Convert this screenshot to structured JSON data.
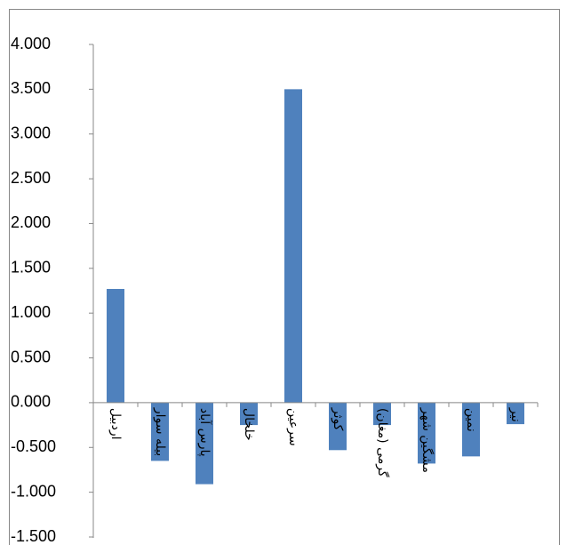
{
  "chart_data": {
    "type": "bar",
    "categories": [
      "اردبیل",
      "بیله سوار",
      "پارس آباد",
      "خلخال",
      "سرعین",
      "کوثر",
      "گرمی (مغان)",
      "مشگین شهر",
      "نمین",
      "نیر"
    ],
    "values": [
      1.27,
      -0.65,
      -0.91,
      -0.25,
      3.5,
      -0.53,
      -0.25,
      -0.68,
      -0.6,
      -0.24
    ],
    "color": "#4f81bd",
    "ylim": [
      -1.5,
      4
    ],
    "yticks": [
      {
        "value": 4,
        "label": "4.000"
      },
      {
        "value": 3.5,
        "label": "3.500"
      },
      {
        "value": 3,
        "label": "3.000"
      },
      {
        "value": 2.5,
        "label": "2.500"
      },
      {
        "value": 2,
        "label": "2.000"
      },
      {
        "value": 1.5,
        "label": "1.500"
      },
      {
        "value": 1,
        "label": "1.000"
      },
      {
        "value": 0.5,
        "label": "0.500"
      },
      {
        "value": 0,
        "label": "0.000"
      },
      {
        "value": -0.5,
        "label": "-0.500"
      },
      {
        "value": -1,
        "label": "-1.000"
      },
      {
        "value": -1.5,
        "label": "-1.500"
      }
    ],
    "grid": false
  }
}
